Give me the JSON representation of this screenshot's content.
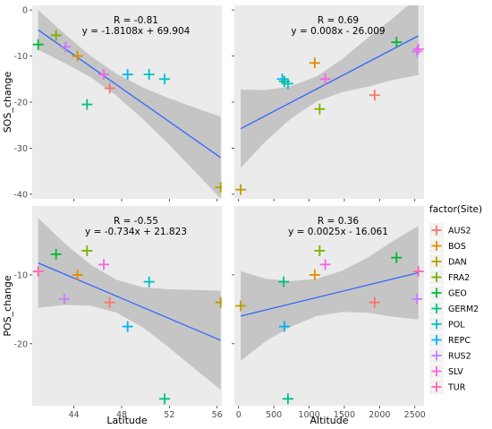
{
  "chart_data": {
    "type": "scatter",
    "legend": {
      "title": "factor(Site)",
      "position": "right",
      "sites": [
        {
          "name": "AUS2",
          "color": "#F8766D"
        },
        {
          "name": "BOS",
          "color": "#DE8C00"
        },
        {
          "name": "DAN",
          "color": "#B79F00"
        },
        {
          "name": "FRA2",
          "color": "#7CAE00"
        },
        {
          "name": "GEO",
          "color": "#00BA38"
        },
        {
          "name": "GERM2",
          "color": "#00C08B"
        },
        {
          "name": "POL",
          "color": "#00BFC4"
        },
        {
          "name": "REPC",
          "color": "#00B4F0"
        },
        {
          "name": "RUS2",
          "color": "#C77CFF"
        },
        {
          "name": "SLV",
          "color": "#F564E3"
        },
        {
          "name": "TUR",
          "color": "#FF64B0"
        }
      ]
    },
    "marker": "cross",
    "regression_line_color": "#3366FF",
    "confidence_band_color": "#BEBEBE",
    "panel_background": "#EBEBEB",
    "grid": false,
    "panels": [
      {
        "row": 0,
        "col": 0,
        "ylabel": "SOS_change",
        "xlim": [
          40.5,
          56.4
        ],
        "ylim": [
          -41,
          1
        ],
        "yticks": [
          0,
          -10,
          -20,
          -30,
          -40
        ],
        "annotation": [
          "R = -0.81",
          "y = -1.8108x + 69.904"
        ],
        "fit": {
          "slope": -1.8108,
          "intercept": 69.904,
          "band_halfwidth": [
            4.3,
            3.2,
            2.3,
            2.4,
            3.4,
            5.0,
            6.9,
            8.9
          ]
        },
        "points": [
          {
            "site": "GEO",
            "x": 41.0,
            "y": -7.5
          },
          {
            "site": "FRA2",
            "x": 42.5,
            "y": -5.5
          },
          {
            "site": "RUS2",
            "x": 43.3,
            "y": -8.0
          },
          {
            "site": "BOS",
            "x": 44.3,
            "y": -10.0
          },
          {
            "site": "GERM2",
            "x": 45.1,
            "y": -20.5
          },
          {
            "site": "SLV",
            "x": 46.5,
            "y": -14.0
          },
          {
            "site": "AUS2",
            "x": 47.0,
            "y": -17.0
          },
          {
            "site": "REPC",
            "x": 48.5,
            "y": -14.0
          },
          {
            "site": "POL",
            "x": 50.3,
            "y": -14.0
          },
          {
            "site": "POL",
            "x": 51.6,
            "y": -15.0
          },
          {
            "site": "DAN",
            "x": 56.3,
            "y": -38.5
          }
        ]
      },
      {
        "row": 0,
        "col": 1,
        "xlim": [
          -60,
          2630
        ],
        "ylim": [
          -41,
          1
        ],
        "annotation": [
          "R = 0.69",
          "y = 0.008x - 26.009"
        ],
        "fit": {
          "slope": 0.008,
          "intercept": -26.009,
          "band_halfwidth": [
            8.5,
            5.5,
            3.5,
            2.7,
            3.6,
            5.3,
            6.7,
            8.5
          ]
        },
        "points": [
          {
            "site": "DAN",
            "x": 30,
            "y": -39.0
          },
          {
            "site": "REPC",
            "x": 620,
            "y": -15.0
          },
          {
            "site": "GERM2",
            "x": 650,
            "y": -15.5
          },
          {
            "site": "POL",
            "x": 700,
            "y": -16.0
          },
          {
            "site": "BOS",
            "x": 1080,
            "y": -11.5
          },
          {
            "site": "FRA2",
            "x": 1150,
            "y": -21.5
          },
          {
            "site": "SLV",
            "x": 1230,
            "y": -15.0
          },
          {
            "site": "AUS2",
            "x": 1930,
            "y": -18.5
          },
          {
            "site": "GEO",
            "x": 2240,
            "y": -7.0
          },
          {
            "site": "RUS2",
            "x": 2530,
            "y": -9.0
          },
          {
            "site": "SLV",
            "x": 2550,
            "y": -8.5
          }
        ]
      },
      {
        "row": 1,
        "col": 0,
        "ylabel": "POS_change",
        "xlabel": "Latitude",
        "xlim": [
          40.5,
          56.4
        ],
        "ylim": [
          -29,
          0
        ],
        "xticks": [
          44,
          48,
          52,
          56
        ],
        "yticks": [
          -10,
          -20
        ],
        "annotation": [
          "R = -0.55",
          "y = -0.734x + 21.823"
        ],
        "fit": {
          "slope": -0.734,
          "intercept": 21.823,
          "band_halfwidth": [
            6.5,
            4.5,
            3.0,
            2.4,
            2.9,
            4.2,
            5.7,
            7.2
          ]
        },
        "points": [
          {
            "site": "TUR",
            "x": 41.0,
            "y": -9.5
          },
          {
            "site": "GEO",
            "x": 42.5,
            "y": -7.0
          },
          {
            "site": "RUS2",
            "x": 43.2,
            "y": -13.5
          },
          {
            "site": "BOS",
            "x": 44.3,
            "y": -10.0
          },
          {
            "site": "FRA2",
            "x": 45.1,
            "y": -6.5
          },
          {
            "site": "SLV",
            "x": 46.5,
            "y": -8.5
          },
          {
            "site": "AUS2",
            "x": 47.0,
            "y": -14.0
          },
          {
            "site": "REPC",
            "x": 48.5,
            "y": -17.5
          },
          {
            "site": "POL",
            "x": 50.3,
            "y": -11.0
          },
          {
            "site": "GERM2",
            "x": 51.6,
            "y": -28.0
          },
          {
            "site": "DAN",
            "x": 56.3,
            "y": -14.0
          }
        ]
      },
      {
        "row": 1,
        "col": 1,
        "xlabel": "Altitude",
        "xlim": [
          -60,
          2630
        ],
        "ylim": [
          -29,
          0
        ],
        "xticks": [
          0,
          500,
          1000,
          1500,
          2000,
          2500
        ],
        "annotation": [
          "R = 0.36",
          "y = 0.0025x - 16.061"
        ],
        "fit": {
          "slope": 0.0025,
          "intercept": -16.061,
          "band_halfwidth": [
            6.5,
            4.5,
            3.3,
            2.7,
            3.0,
            4.0,
            5.5,
            6.8
          ]
        },
        "points": [
          {
            "site": "DAN",
            "x": 30,
            "y": -14.5
          },
          {
            "site": "GERM2",
            "x": 640,
            "y": -11.0
          },
          {
            "site": "REPC",
            "x": 650,
            "y": -17.5
          },
          {
            "site": "GERM2",
            "x": 700,
            "y": -28.0
          },
          {
            "site": "BOS",
            "x": 1080,
            "y": -10.0
          },
          {
            "site": "FRA2",
            "x": 1150,
            "y": -6.5
          },
          {
            "site": "SLV",
            "x": 1230,
            "y": -8.5
          },
          {
            "site": "AUS2",
            "x": 1930,
            "y": -14.0
          },
          {
            "site": "GEO",
            "x": 2240,
            "y": -7.5
          },
          {
            "site": "RUS2",
            "x": 2530,
            "y": -13.5
          },
          {
            "site": "TUR",
            "x": 2550,
            "y": -9.5
          }
        ]
      }
    ]
  }
}
